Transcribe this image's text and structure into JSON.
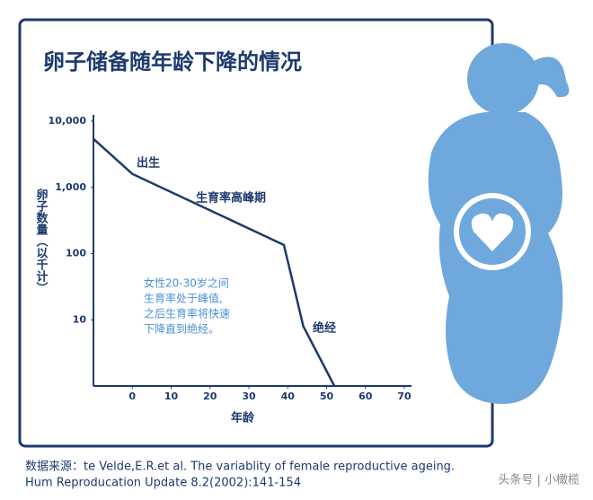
{
  "chart_data": {
    "type": "line",
    "title": "卵子储备随年龄下降的情况",
    "x": [
      -10,
      0,
      39,
      41,
      44,
      52
    ],
    "values": [
      5400,
      1600,
      135,
      44,
      8,
      1
    ],
    "color": "#1d3a6e",
    "log_scale": true,
    "xlim": [
      -10,
      70
    ],
    "xticks": [
      0,
      10,
      20,
      30,
      40,
      50,
      60,
      70
    ],
    "ylim": [
      1,
      10000
    ],
    "yticks": [
      {
        "value": 10000,
        "label": "10,000"
      },
      {
        "value": 1000,
        "label": "1,000"
      },
      100,
      10
    ],
    "x_label": "年龄",
    "y_label": "卵子数量（以千计）",
    "annotations": [
      "出生",
      "生育率高峰期",
      "绝经"
    ],
    "note": [
      "女性20-30岁之间",
      "生育率处于峰值,",
      "之后生育率将快速",
      "下降直到绝经。"
    ],
    "source": [
      "数据来源：te Velde,E.R.et al. The variablity of female reproductive ageing.",
      "Hum Reproducation Update 8.2(2002):141-154"
    ],
    "watermark": "头条号 | 小橄榄"
  }
}
